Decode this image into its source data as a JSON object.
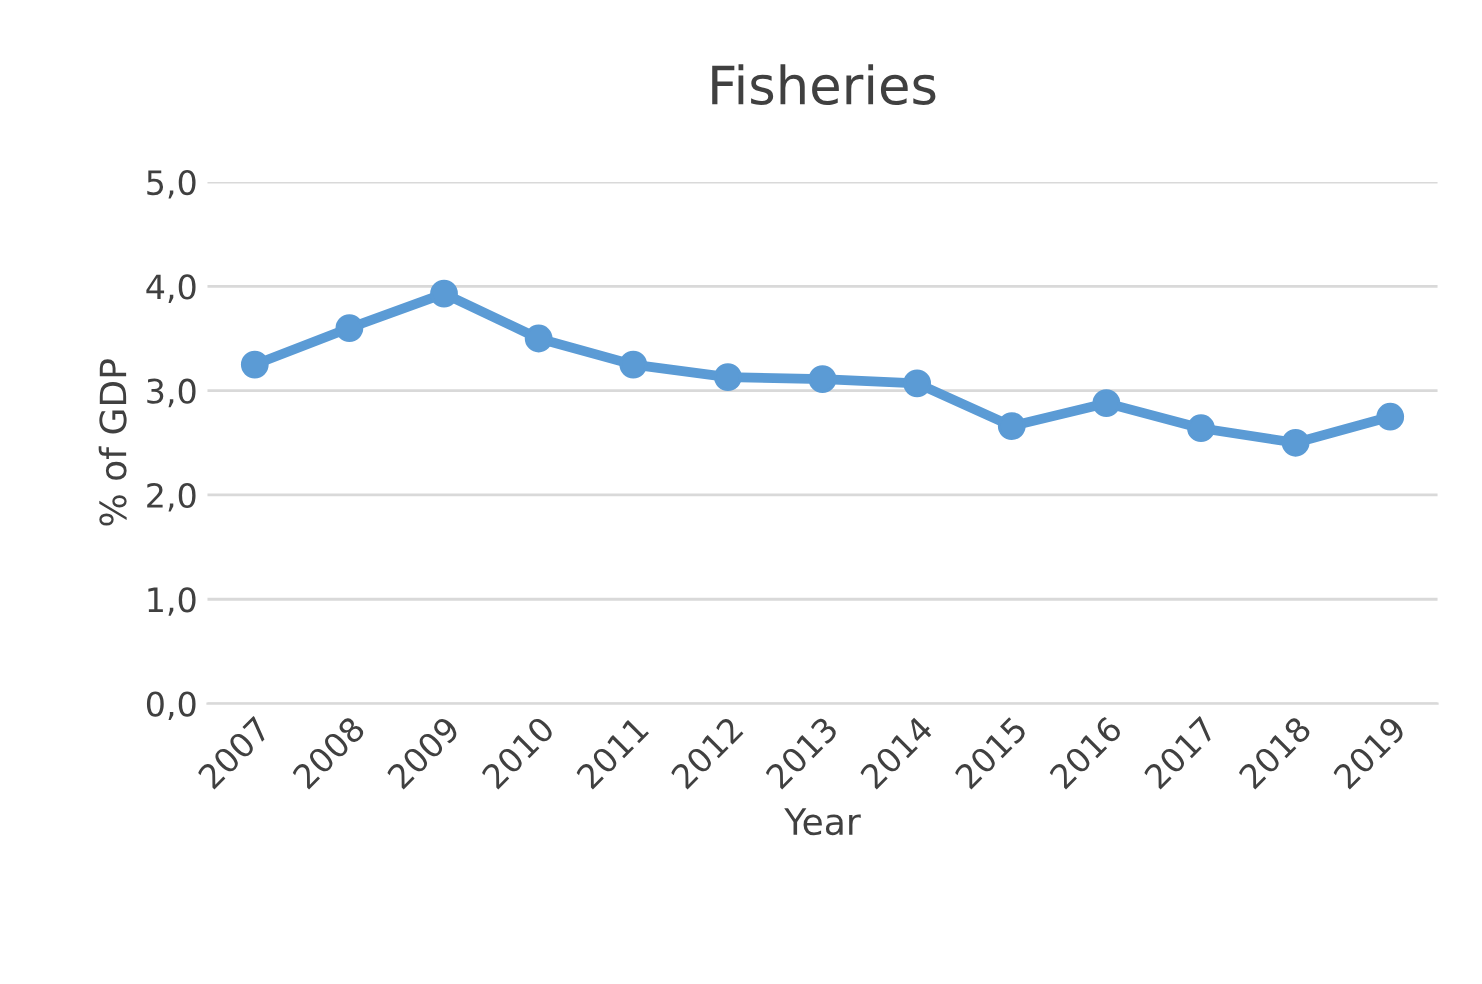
{
  "chart_data": {
    "type": "line",
    "title": "Fisheries",
    "xlabel": "Year",
    "ylabel": "% of GDP",
    "categories": [
      "2007",
      "2008",
      "2009",
      "2010",
      "2011",
      "2012",
      "2013",
      "2014",
      "2015",
      "2016",
      "2017",
      "2018",
      "2019"
    ],
    "series": [
      {
        "color": "#5b9bd5",
        "values": [
          3.25,
          3.6,
          3.93,
          3.5,
          3.25,
          3.13,
          3.11,
          3.07,
          2.66,
          2.88,
          2.64,
          2.5,
          2.75
        ]
      }
    ],
    "ylim": [
      0,
      5
    ],
    "yticks": [
      {
        "value": 0,
        "label": "0,0"
      },
      {
        "value": 1,
        "label": "1,0"
      },
      {
        "value": 2,
        "label": "2,0"
      },
      {
        "value": 3,
        "label": "3,0"
      },
      {
        "value": 4,
        "label": "4,0"
      },
      {
        "value": 5,
        "label": "5,0"
      }
    ],
    "grid": "y",
    "marker": "circle",
    "line_style": "solid"
  }
}
